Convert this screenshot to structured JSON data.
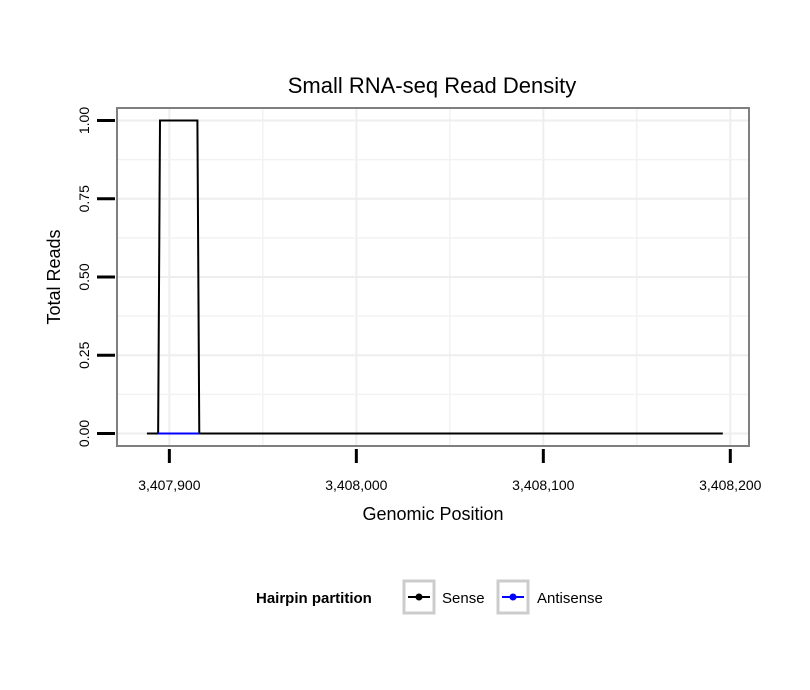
{
  "chart_data": {
    "type": "line",
    "title": "Small RNA-seq Read Density",
    "xlabel": "Genomic Position",
    "ylabel": "Total Reads",
    "xlim": [
      3407872,
      3408210
    ],
    "ylim": [
      -0.04,
      1.04
    ],
    "x_ticks": [
      3407900,
      3408000,
      3408100,
      3408200
    ],
    "x_tick_labels": [
      "3,407,900",
      "3,408,000",
      "3,408,100",
      "3,408,200"
    ],
    "y_ticks": [
      0,
      0.25,
      0.5,
      0.75,
      1.0
    ],
    "y_tick_labels": [
      "0.00",
      "0.25",
      "0.50",
      "0.75",
      "1.00"
    ],
    "grid": true,
    "legend": {
      "position": "bottom",
      "title": "Hairpin partition",
      "entries": [
        "Sense",
        "Antisense"
      ]
    },
    "series": [
      {
        "name": "Sense",
        "color": "#000000",
        "x": [
          3407888,
          3407894,
          3407895,
          3407915,
          3407916,
          3408196
        ],
        "y": [
          0,
          0,
          1,
          1,
          0,
          0
        ]
      },
      {
        "name": "Antisense",
        "color": "#0000ff",
        "x": [
          3407894,
          3407916
        ],
        "y": [
          0,
          0
        ]
      }
    ]
  }
}
